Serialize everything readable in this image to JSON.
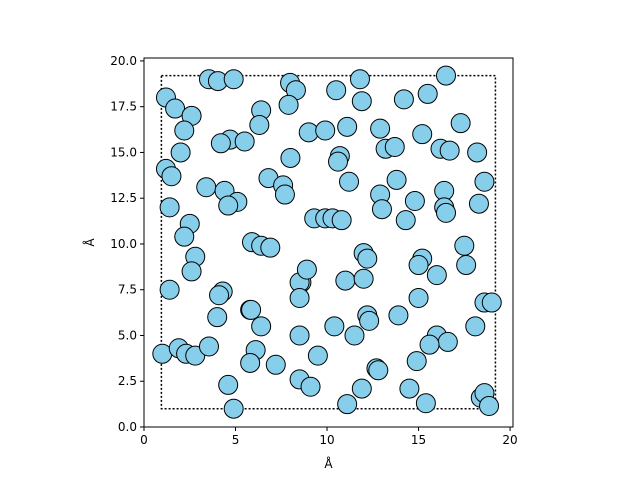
{
  "chart_data": {
    "type": "scatter",
    "xlabel": "Å",
    "ylabel": "Å",
    "xlim": [
      0,
      20.16
    ],
    "ylim": [
      0,
      20.16
    ],
    "xticks": [
      0,
      5,
      10,
      15,
      20
    ],
    "yticks": [
      {
        "value": 0,
        "label": "0.0"
      },
      {
        "value": 2.5,
        "label": "2.5"
      },
      {
        "value": 5,
        "label": "5.0"
      },
      {
        "value": 7.5,
        "label": "7.5"
      },
      {
        "value": 10,
        "label": "10.0"
      },
      {
        "value": 12.5,
        "label": "12.5"
      },
      {
        "value": 15,
        "label": "15.0"
      },
      {
        "value": 17.5,
        "label": "17.5"
      },
      {
        "value": 20,
        "label": "20.0"
      }
    ],
    "color": "#87ceeb",
    "edgecolor": "#000000",
    "box": {
      "x": [
        0.95,
        19.2
      ],
      "y": [
        1,
        19.2
      ]
    },
    "x": [
      3.55,
      4.04,
      4.9,
      7.98,
      8.3,
      11.8,
      16.5,
      1.2,
      1.7,
      2.6,
      2.2,
      6.4,
      7.9,
      10.5,
      11.9,
      14.2,
      15.5,
      17.3,
      4.7,
      4.2,
      5.5,
      6.3,
      9.0,
      9.9,
      11.1,
      12.9,
      13.2,
      13.7,
      15.2,
      16.2,
      16.7,
      18.2,
      2.0,
      1.2,
      1.5,
      8.0,
      10.7,
      10.6,
      6.8,
      7.6,
      7.7,
      3.4,
      4.4,
      5.1,
      4.6,
      11.2,
      12.9,
      13.0,
      13.8,
      14.3,
      14.8,
      16.4,
      16.4,
      16.5,
      18.6,
      18.3,
      1.4,
      2.5,
      2.2,
      2.8,
      2.6,
      1.4,
      5.9,
      6.4,
      6.9,
      9.3,
      9.9,
      10.3,
      10.8,
      12.0,
      12.2,
      8.6,
      8.5,
      8.9,
      8.5,
      11.0,
      12.0,
      15.2,
      15.0,
      16.0,
      17.5,
      17.6,
      4.3,
      4.1,
      4.0,
      5.8,
      5.85,
      6.4,
      8.5,
      10.4,
      11.5,
      12.2,
      12.3,
      13.9,
      15.0,
      16.0,
      16.6,
      15.6,
      18.1,
      18.6,
      19.0,
      1.0,
      1.9,
      2.3,
      2.8,
      3.55,
      6.1,
      5.8,
      7.2,
      9.5,
      8.5,
      9.1,
      4.6,
      4.9,
      11.1,
      11.9,
      12.7,
      12.8,
      14.5,
      14.9,
      15.4,
      18.4,
      18.6,
      18.85
    ],
    "values": [
      19.0,
      18.9,
      19.0,
      18.8,
      18.4,
      19.0,
      19.2,
      18.0,
      17.4,
      17.0,
      16.2,
      17.3,
      17.6,
      18.4,
      17.8,
      17.9,
      18.2,
      16.6,
      15.7,
      15.5,
      15.6,
      16.5,
      16.1,
      16.2,
      16.4,
      16.3,
      15.2,
      15.3,
      16.0,
      15.2,
      15.1,
      15.0,
      15.0,
      14.1,
      13.7,
      14.7,
      14.8,
      14.5,
      13.6,
      13.2,
      12.7,
      13.1,
      12.9,
      12.3,
      12.1,
      13.4,
      12.7,
      11.9,
      13.5,
      11.3,
      12.35,
      12.9,
      12.0,
      11.7,
      13.4,
      12.2,
      12.0,
      11.1,
      10.4,
      9.3,
      8.5,
      7.5,
      10.1,
      9.9,
      9.8,
      11.4,
      11.4,
      11.4,
      11.3,
      9.5,
      9.2,
      7.9,
      7.9,
      8.6,
      7.05,
      8.0,
      8.1,
      9.2,
      8.85,
      8.3,
      9.9,
      8.85,
      7.4,
      7.2,
      6.0,
      6.4,
      6.4,
      5.5,
      5.0,
      5.5,
      5.0,
      6.1,
      5.8,
      6.1,
      7.05,
      5.0,
      4.65,
      4.5,
      5.5,
      6.8,
      6.8,
      4.0,
      4.3,
      4.0,
      3.9,
      4.4,
      4.2,
      3.5,
      3.4,
      3.9,
      2.6,
      2.2,
      2.3,
      1.0,
      1.25,
      2.1,
      3.2,
      3.1,
      2.1,
      3.6,
      1.3,
      1.6,
      1.85,
      1.15
    ]
  }
}
